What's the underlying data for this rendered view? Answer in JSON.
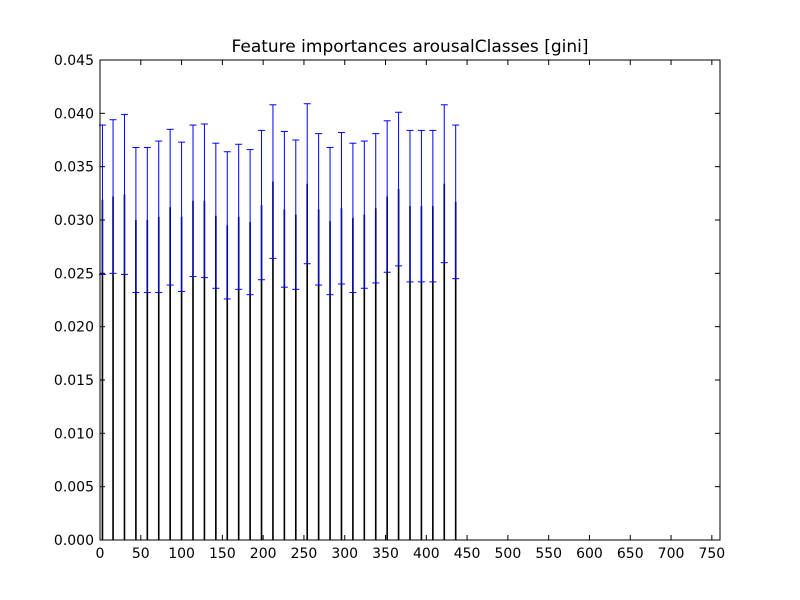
{
  "chart_data": {
    "type": "bar",
    "title": "Feature importances arousalClasses [gini]",
    "xlabel": "",
    "ylabel": "",
    "xlim": [
      0,
      760
    ],
    "ylim": [
      0,
      0.045
    ],
    "xticks": [
      0,
      50,
      100,
      150,
      200,
      250,
      300,
      350,
      400,
      450,
      500,
      550,
      600,
      650,
      700,
      750
    ],
    "yticks": [
      0.0,
      0.005,
      0.01,
      0.015,
      0.02,
      0.025,
      0.03,
      0.035,
      0.04,
      0.045
    ],
    "bar_width": 2,
    "grid": false,
    "legend": "none",
    "bar_color": "#000000",
    "error_color": "#0000ff",
    "bars": [
      {
        "x": 3,
        "value": 0.0319,
        "error": 0.007
      },
      {
        "x": 16,
        "value": 0.0322,
        "error": 0.0072
      },
      {
        "x": 30,
        "value": 0.0324,
        "error": 0.0075
      },
      {
        "x": 44,
        "value": 0.03,
        "error": 0.0068
      },
      {
        "x": 58,
        "value": 0.03,
        "error": 0.0068
      },
      {
        "x": 72,
        "value": 0.0303,
        "error": 0.0071
      },
      {
        "x": 86,
        "value": 0.0312,
        "error": 0.0073
      },
      {
        "x": 100,
        "value": 0.0303,
        "error": 0.007
      },
      {
        "x": 114,
        "value": 0.0318,
        "error": 0.0071
      },
      {
        "x": 128,
        "value": 0.0318,
        "error": 0.0072
      },
      {
        "x": 142,
        "value": 0.0304,
        "error": 0.0068
      },
      {
        "x": 156,
        "value": 0.0295,
        "error": 0.0069
      },
      {
        "x": 170,
        "value": 0.0303,
        "error": 0.0068
      },
      {
        "x": 184,
        "value": 0.0298,
        "error": 0.0068
      },
      {
        "x": 198,
        "value": 0.0314,
        "error": 0.007
      },
      {
        "x": 212,
        "value": 0.0336,
        "error": 0.0072
      },
      {
        "x": 226,
        "value": 0.031,
        "error": 0.0073
      },
      {
        "x": 240,
        "value": 0.0305,
        "error": 0.007
      },
      {
        "x": 254,
        "value": 0.0334,
        "error": 0.0075
      },
      {
        "x": 268,
        "value": 0.031,
        "error": 0.0071
      },
      {
        "x": 282,
        "value": 0.0299,
        "error": 0.0069
      },
      {
        "x": 296,
        "value": 0.0311,
        "error": 0.0071
      },
      {
        "x": 310,
        "value": 0.0302,
        "error": 0.007
      },
      {
        "x": 324,
        "value": 0.0305,
        "error": 0.0069
      },
      {
        "x": 338,
        "value": 0.0311,
        "error": 0.007
      },
      {
        "x": 352,
        "value": 0.0322,
        "error": 0.0071
      },
      {
        "x": 366,
        "value": 0.0329,
        "error": 0.0072
      },
      {
        "x": 380,
        "value": 0.0313,
        "error": 0.0071
      },
      {
        "x": 394,
        "value": 0.0313,
        "error": 0.0071
      },
      {
        "x": 408,
        "value": 0.0313,
        "error": 0.0071
      },
      {
        "x": 422,
        "value": 0.0334,
        "error": 0.0074
      },
      {
        "x": 436,
        "value": 0.0317,
        "error": 0.0072
      }
    ]
  }
}
